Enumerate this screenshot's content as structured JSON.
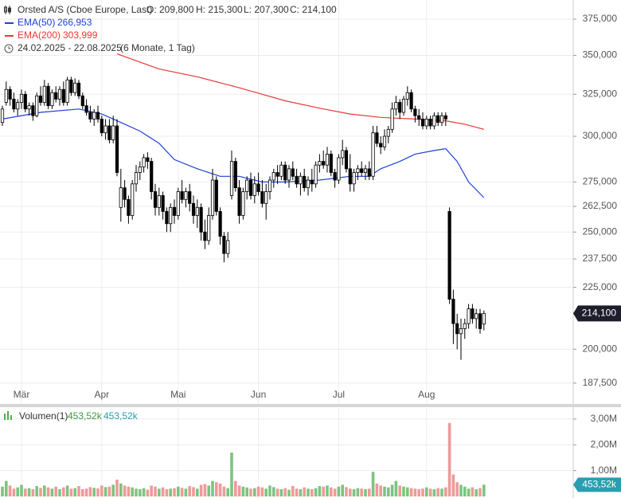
{
  "chart_data": {
    "type": "candlestick",
    "title": "Orsted A/S (Cboe Europe, Last)",
    "ohlc_labels": [
      "O: 209,800",
      "H: 215,300",
      "L: 207,300",
      "C: 214,100"
    ],
    "range_label": "24.02.2025 - 22.08.2025",
    "period_label": "(6 Monate, 1 Tag)",
    "last_label": "214,100",
    "up_color": "#ffffff",
    "down_color": "#000000",
    "log_scale": true,
    "grid": true,
    "ylim": [
      180200,
      388900
    ],
    "yticks": [
      {
        "value": 187500,
        "label": "187,500"
      },
      {
        "value": 200000,
        "label": "200,000"
      },
      {
        "value": 225000,
        "label": "225,000"
      },
      {
        "value": 237500,
        "label": "237,500"
      },
      {
        "value": 250000,
        "label": "250,000"
      },
      {
        "value": 262500,
        "label": "262,500"
      },
      {
        "value": 275000,
        "label": "275,000"
      },
      {
        "value": 300000,
        "label": "300,000"
      },
      {
        "value": 325000,
        "label": "325,000"
      },
      {
        "value": 350000,
        "label": "350,000"
      },
      {
        "value": 375000,
        "label": "375,000"
      }
    ],
    "xticks": [
      {
        "value": "2025-03-03",
        "label": "Mär"
      },
      {
        "value": "2025-04-01",
        "label": "Apr"
      },
      {
        "value": "2025-05-02",
        "label": "Mai"
      },
      {
        "value": "2025-06-02",
        "label": "Jun"
      },
      {
        "value": "2025-07-01",
        "label": "Jul"
      },
      {
        "value": "2025-08-01",
        "label": "Aug"
      }
    ],
    "x": [
      "2025-02-24",
      "2025-02-25",
      "2025-02-26",
      "2025-02-27",
      "2025-02-28",
      "2025-03-03",
      "2025-03-04",
      "2025-03-05",
      "2025-03-06",
      "2025-03-07",
      "2025-03-10",
      "2025-03-11",
      "2025-03-12",
      "2025-03-13",
      "2025-03-14",
      "2025-03-17",
      "2025-03-18",
      "2025-03-19",
      "2025-03-20",
      "2025-03-21",
      "2025-03-24",
      "2025-03-25",
      "2025-03-26",
      "2025-03-27",
      "2025-03-28",
      "2025-03-31",
      "2025-04-01",
      "2025-04-02",
      "2025-04-03",
      "2025-04-04",
      "2025-04-07",
      "2025-04-08",
      "2025-04-09",
      "2025-04-10",
      "2025-04-11",
      "2025-04-14",
      "2025-04-15",
      "2025-04-16",
      "2025-04-17",
      "2025-04-22",
      "2025-04-23",
      "2025-04-24",
      "2025-04-25",
      "2025-04-28",
      "2025-04-29",
      "2025-04-30",
      "2025-05-02",
      "2025-05-05",
      "2025-05-06",
      "2025-05-07",
      "2025-05-08",
      "2025-05-09",
      "2025-05-12",
      "2025-05-13",
      "2025-05-14",
      "2025-05-15",
      "2025-05-16",
      "2025-05-19",
      "2025-05-20",
      "2025-05-21",
      "2025-05-22",
      "2025-05-23",
      "2025-05-26",
      "2025-05-27",
      "2025-05-28",
      "2025-05-29",
      "2025-05-30",
      "2025-06-02",
      "2025-06-03",
      "2025-06-04",
      "2025-06-05",
      "2025-06-06",
      "2025-06-09",
      "2025-06-10",
      "2025-06-11",
      "2025-06-12",
      "2025-06-13",
      "2025-06-16",
      "2025-06-17",
      "2025-06-18",
      "2025-06-19",
      "2025-06-20",
      "2025-06-23",
      "2025-06-24",
      "2025-06-25",
      "2025-06-26",
      "2025-06-27",
      "2025-06-30",
      "2025-07-01",
      "2025-07-02",
      "2025-07-03",
      "2025-07-04",
      "2025-07-07",
      "2025-07-08",
      "2025-07-09",
      "2025-07-10",
      "2025-07-11",
      "2025-07-14",
      "2025-07-15",
      "2025-07-16",
      "2025-07-17",
      "2025-07-18",
      "2025-07-21",
      "2025-07-22",
      "2025-07-23",
      "2025-07-24",
      "2025-07-25",
      "2025-07-28",
      "2025-07-29",
      "2025-07-30",
      "2025-07-31",
      "2025-08-01",
      "2025-08-04",
      "2025-08-05",
      "2025-08-06",
      "2025-08-07",
      "2025-08-08",
      "2025-08-11",
      "2025-08-12",
      "2025-08-13",
      "2025-08-14",
      "2025-08-15",
      "2025-08-18",
      "2025-08-19",
      "2025-08-20",
      "2025-08-21",
      "2025-08-22"
    ],
    "open": [
      308000,
      320000,
      328000,
      322000,
      316000,
      320000,
      325000,
      316000,
      318000,
      312000,
      324000,
      320000,
      330000,
      318000,
      326000,
      322000,
      328000,
      320000,
      334000,
      326000,
      332000,
      324000,
      318000,
      314000,
      310000,
      314000,
      310000,
      302000,
      306000,
      298000,
      306000,
      262000,
      272000,
      266000,
      258000,
      274000,
      280000,
      283000,
      288000,
      286000,
      270000,
      262000,
      268000,
      260000,
      254000,
      262000,
      258000,
      270000,
      266000,
      270000,
      264000,
      258000,
      262000,
      250000,
      246000,
      258000,
      276000,
      260000,
      248000,
      240000,
      268000,
      286000,
      272000,
      258000,
      270000,
      276000,
      268000,
      274000,
      270000,
      264000,
      270000,
      276000,
      280000,
      278000,
      284000,
      276000,
      282000,
      278000,
      274000,
      278000,
      272000,
      276000,
      274000,
      284000,
      286000,
      284000,
      290000,
      280000,
      276000,
      288000,
      292000,
      282000,
      274000,
      280000,
      282000,
      280000,
      282000,
      278000,
      302000,
      296000,
      294000,
      300000,
      304000,
      316000,
      320000,
      314000,
      322000,
      326000,
      316000,
      312000,
      310000,
      306000,
      310000,
      306000,
      312000,
      308000,
      312000,
      260000,
      220000,
      210000,
      206000,
      208000,
      210000,
      216000,
      212000,
      214000,
      209800
    ],
    "high": [
      318000,
      333000,
      330000,
      326000,
      322000,
      328000,
      327000,
      320000,
      320000,
      326000,
      330000,
      334000,
      332000,
      328000,
      330000,
      330000,
      333000,
      336000,
      336000,
      335000,
      334000,
      326000,
      322000,
      318000,
      316000,
      318000,
      312000,
      310000,
      310000,
      312000,
      310000,
      282000,
      276000,
      268000,
      276000,
      284000,
      286000,
      290000,
      291000,
      288000,
      274000,
      272000,
      270000,
      262000,
      264000,
      266000,
      272000,
      276000,
      272000,
      274000,
      268000,
      266000,
      264000,
      256000,
      262000,
      282000,
      278000,
      262000,
      250000,
      250000,
      292000,
      288000,
      276000,
      272000,
      278000,
      280000,
      278000,
      280000,
      276000,
      274000,
      278000,
      282000,
      284000,
      286000,
      286000,
      284000,
      286000,
      282000,
      280000,
      282000,
      278000,
      282000,
      286000,
      290000,
      292000,
      294000,
      292000,
      282000,
      290000,
      298000,
      294000,
      290000,
      282000,
      284000,
      286000,
      284000,
      286000,
      306000,
      306000,
      300000,
      304000,
      306000,
      320000,
      324000,
      322000,
      324000,
      330000,
      328000,
      318000,
      316000,
      314000,
      312000,
      312000,
      314000,
      314000,
      314000,
      314000,
      262000,
      224000,
      214000,
      212000,
      212000,
      218000,
      218000,
      216000,
      216000,
      215300
    ],
    "low": [
      306000,
      318000,
      318000,
      314000,
      312000,
      316000,
      314000,
      312000,
      309000,
      311000,
      318000,
      318000,
      316000,
      316000,
      320000,
      318000,
      318000,
      318000,
      324000,
      324000,
      322000,
      316000,
      312000,
      308000,
      306000,
      308000,
      300000,
      298000,
      296000,
      296000,
      278000,
      255000,
      262000,
      254000,
      256000,
      270000,
      276000,
      280000,
      282000,
      266000,
      258000,
      258000,
      256000,
      250000,
      250000,
      254000,
      256000,
      264000,
      262000,
      260000,
      254000,
      252000,
      246000,
      242000,
      244000,
      256000,
      258000,
      244000,
      236000,
      238000,
      266000,
      270000,
      254000,
      256000,
      266000,
      266000,
      264000,
      268000,
      262000,
      256000,
      266000,
      272000,
      274000,
      276000,
      274000,
      272000,
      276000,
      272000,
      268000,
      270000,
      268000,
      270000,
      272000,
      280000,
      282000,
      280000,
      278000,
      272000,
      274000,
      284000,
      280000,
      270000,
      270000,
      276000,
      278000,
      276000,
      276000,
      276000,
      294000,
      290000,
      292000,
      296000,
      302000,
      312000,
      310000,
      312000,
      318000,
      314000,
      308000,
      306000,
      304000,
      304000,
      304000,
      304000,
      306000,
      306000,
      306000,
      218000,
      202000,
      200000,
      196000,
      204000,
      208000,
      210000,
      208000,
      206000,
      207300
    ],
    "close": [
      316000,
      328000,
      322000,
      316000,
      320000,
      325000,
      316000,
      318000,
      312000,
      324000,
      320000,
      330000,
      318000,
      326000,
      322000,
      328000,
      320000,
      334000,
      326000,
      332000,
      324000,
      318000,
      314000,
      310000,
      314000,
      310000,
      302000,
      306000,
      298000,
      306000,
      280000,
      272000,
      266000,
      258000,
      274000,
      280000,
      283000,
      288000,
      286000,
      270000,
      262000,
      268000,
      260000,
      254000,
      262000,
      258000,
      270000,
      266000,
      270000,
      264000,
      258000,
      262000,
      250000,
      246000,
      258000,
      276000,
      260000,
      248000,
      240000,
      246000,
      286000,
      272000,
      258000,
      270000,
      276000,
      268000,
      274000,
      270000,
      264000,
      270000,
      276000,
      280000,
      278000,
      284000,
      276000,
      282000,
      278000,
      274000,
      278000,
      272000,
      276000,
      274000,
      284000,
      286000,
      284000,
      290000,
      280000,
      276000,
      288000,
      292000,
      282000,
      274000,
      280000,
      282000,
      280000,
      282000,
      278000,
      302000,
      296000,
      294000,
      300000,
      304000,
      316000,
      320000,
      314000,
      322000,
      326000,
      316000,
      312000,
      310000,
      306000,
      310000,
      306000,
      312000,
      308000,
      312000,
      310000,
      220000,
      210000,
      206000,
      208000,
      210000,
      216000,
      212000,
      214000,
      208000,
      214100
    ],
    "overlays": [
      {
        "name": "EMA(50)",
        "color": "#1f3fd6",
        "value_label": "266,953",
        "x": [
          "2025-02-24",
          "2025-03-10",
          "2025-03-24",
          "2025-04-01",
          "2025-04-08",
          "2025-04-15",
          "2025-04-24",
          "2025-04-30",
          "2025-05-09",
          "2025-05-19",
          "2025-05-26",
          "2025-06-03",
          "2025-06-11",
          "2025-06-24",
          "2025-07-04",
          "2025-07-11",
          "2025-07-16",
          "2025-07-23",
          "2025-07-29",
          "2025-08-05",
          "2025-08-08",
          "2025-08-13",
          "2025-08-18",
          "2025-08-22"
        ],
        "values": [
          310000,
          314000,
          316000,
          313000,
          308000,
          303000,
          296000,
          287000,
          282000,
          278000,
          278000,
          275000,
          275000,
          276000,
          278000,
          278000,
          282000,
          286000,
          290000,
          292000,
          293000,
          286000,
          275000,
          266953
        ]
      },
      {
        "name": "EMA(200)",
        "color": "#e53935",
        "value_label": "303,999",
        "x": [
          "2025-04-07",
          "2025-04-24",
          "2025-05-09",
          "2025-05-26",
          "2025-06-03",
          "2025-06-11",
          "2025-06-24",
          "2025-07-04",
          "2025-07-16",
          "2025-07-29",
          "2025-08-08",
          "2025-08-15",
          "2025-08-22"
        ],
        "values": [
          351000,
          341000,
          336000,
          329000,
          325000,
          321000,
          316500,
          313000,
          311000,
          310000,
          309000,
          307000,
          303999
        ]
      }
    ],
    "volume": {
      "name": "Volumen(1)",
      "last_label": "453,52k",
      "up_color": "#7cc47f",
      "down_color": "#ee9a9a",
      "tag_color": "#2b9db0",
      "ylim": [
        0,
        3430000
      ],
      "yticks": [
        {
          "value": 1000000,
          "label": "1,00M"
        },
        {
          "value": 2000000,
          "label": "2,00M"
        },
        {
          "value": 3000000,
          "label": "3,00M"
        }
      ],
      "values": [
        380000,
        600000,
        420000,
        300000,
        350000,
        450000,
        300000,
        320000,
        280000,
        400000,
        330000,
        420000,
        350000,
        300000,
        380000,
        280000,
        350000,
        420000,
        300000,
        320000,
        400000,
        280000,
        300000,
        360000,
        330000,
        310000,
        420000,
        360000,
        380000,
        450000,
        650000,
        500000,
        420000,
        380000,
        350000,
        300000,
        280000,
        320000,
        260000,
        420000,
        380000,
        300000,
        350000,
        280000,
        300000,
        320000,
        380000,
        330000,
        300000,
        400000,
        360000,
        300000,
        450000,
        480000,
        420000,
        600000,
        550000,
        500000,
        380000,
        320000,
        1700000,
        600000,
        420000,
        380000,
        350000,
        300000,
        320000,
        380000,
        350000,
        300000,
        420000,
        360000,
        300000,
        280000,
        320000,
        260000,
        400000,
        300000,
        280000,
        350000,
        300000,
        280000,
        320000,
        400000,
        380000,
        420000,
        350000,
        300000,
        380000,
        450000,
        360000,
        300000,
        280000,
        320000,
        300000,
        280000,
        300000,
        950000,
        500000,
        420000,
        380000,
        350000,
        450000,
        600000,
        420000,
        380000,
        350000,
        320000,
        300000,
        280000,
        300000,
        350000,
        300000,
        280000,
        320000,
        300000,
        350000,
        2850000,
        850000,
        550000,
        450000,
        380000,
        300000,
        350000,
        280000,
        320000,
        453520
      ]
    }
  }
}
